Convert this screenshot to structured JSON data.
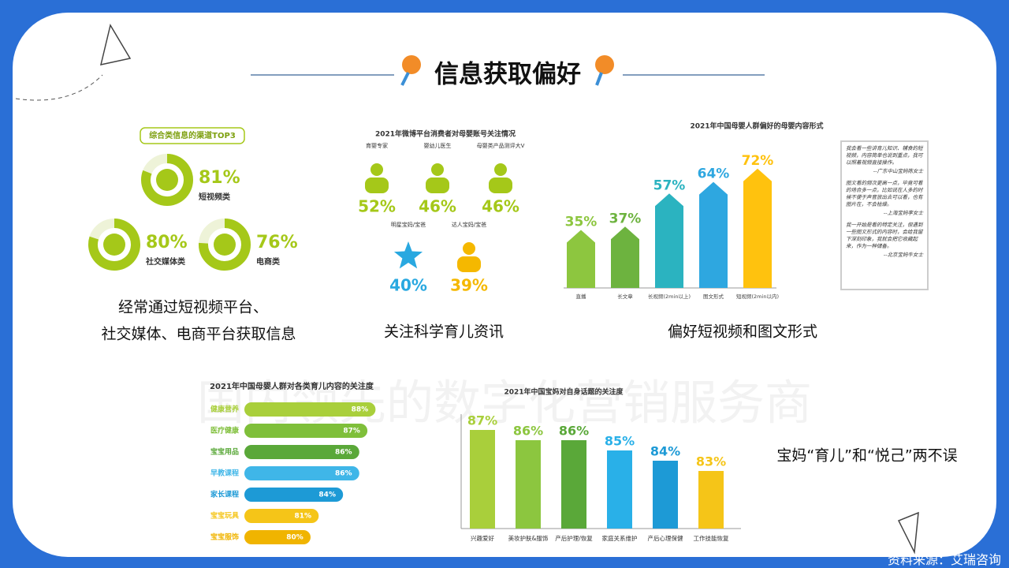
{
  "title": "信息获取偏好",
  "watermark": "国内领先的数字化营销服务商",
  "captions": [
    "经常通过短视频平台、",
    "社交媒体、电商平台获取信息",
    "关注科学育儿资讯",
    "偏好短视频和图文形式",
    "宝妈“育儿”和“悦己”两不误"
  ],
  "source": "资料来源：艾瑞咨询",
  "quotes": [
    {
      "text": "我会看一些讲育儿知识、辅食的短视频，内容简单也说到重点，我可以照着视频直接操作。",
      "author": "--广东中山宝妈陈女士"
    },
    {
      "text": "图文看的频次更高一点，毕竟可看的场合多一点，比如说在人多的时候不便于声音放出去可以看，也有图片在，不会枯燥。",
      "author": "--上海宝妈李女士"
    },
    {
      "text": "我一开始是看的特定关注，但遇到一些图文形式的内容时，会给我留下深刻印象，我就会把它收藏起来，作为一种储备。",
      "author": "--北京宝妈牛女士"
    }
  ],
  "chart_data": [
    {
      "type": "donut",
      "title": "综合类信息的渠道TOP3",
      "categories": [
        "短视频类",
        "社交媒体类",
        "电商类"
      ],
      "values": [
        81,
        80,
        76
      ],
      "value_labels": [
        "81%",
        "80%",
        "76%"
      ],
      "color": "#a5c819"
    },
    {
      "type": "pictograph",
      "title": "2021年微博平台消费者对母婴账号关注情况",
      "categories": [
        "育婴专家",
        "婴幼儿医生",
        "母婴类产品测评大V",
        "明星宝妈/宝爸",
        "达人宝妈/宝爸"
      ],
      "values": [
        52,
        46,
        46,
        40,
        39
      ],
      "value_labels": [
        "52%",
        "46%",
        "46%",
        "40%",
        "39%"
      ],
      "colors": [
        "#a5c819",
        "#a5c819",
        "#a5c819",
        "#29a8e0",
        "#f5b800"
      ]
    },
    {
      "type": "bar",
      "title": "2021年中国母婴人群偏好的母婴内容形式",
      "categories": [
        "直播",
        "长文章",
        "长视频(2min以上)",
        "图文形式",
        "短视频(2min以内)"
      ],
      "values": [
        35,
        37,
        57,
        64,
        72
      ],
      "value_labels": [
        "35%",
        "37%",
        "57%",
        "64%",
        "72%"
      ],
      "colors": [
        "#8dc63f",
        "#6db33f",
        "#2bb3c0",
        "#2ea7e0",
        "#ffc20e"
      ]
    },
    {
      "type": "bar",
      "orientation": "horizontal",
      "title": "2021年中国母婴人群对各类育儿内容的关注度",
      "categories": [
        "健康营养",
        "医疗健康",
        "宝宝用品",
        "早教课程",
        "家长课程",
        "宝宝玩具",
        "宝宝服饰"
      ],
      "values": [
        88,
        87,
        86,
        86,
        84,
        81,
        80
      ],
      "value_labels": [
        "88%",
        "87%",
        "86%",
        "86%",
        "84%",
        "81%",
        "80%"
      ],
      "colors": [
        "#a9cf3b",
        "#7fbf3a",
        "#5aa839",
        "#3fb6e8",
        "#1d9ad6",
        "#f5c518",
        "#f0b400"
      ]
    },
    {
      "type": "bar",
      "title": "2021年中国宝妈对自身话题的关注度",
      "categories": [
        "兴趣爱好",
        "美妆护肤&服饰",
        "产后护理/恢复",
        "家庭关系维护",
        "产后心理保健",
        "工作技能恢复"
      ],
      "values": [
        87,
        86,
        86,
        85,
        84,
        83
      ],
      "value_labels": [
        "87%",
        "86%",
        "86%",
        "85%",
        "84%",
        "83%"
      ],
      "colors": [
        "#a9cf3b",
        "#8cc63f",
        "#5aa839",
        "#29b0e8",
        "#1d9ad6",
        "#f5c518"
      ]
    }
  ]
}
